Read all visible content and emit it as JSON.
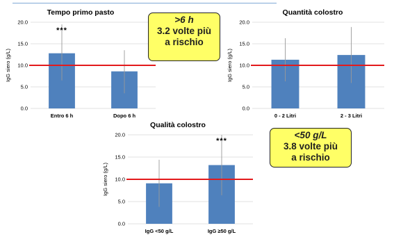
{
  "chart_data": [
    {
      "type": "bar",
      "title": "Tempo primo pasto",
      "ylabel": "IgG siero (g/L)",
      "categories": [
        "Entro 6 h",
        "Dopo 6 h"
      ],
      "values": [
        12.8,
        8.6
      ],
      "errors_upper": [
        19.5,
        13.5
      ],
      "errors_lower": [
        6.5,
        3.5
      ],
      "annotations": [
        "***",
        ""
      ],
      "reference_line": 10.0,
      "ylim": [
        0,
        20
      ],
      "yticks": [
        "0.0",
        "5.0",
        "10.0",
        "15.0",
        "20.0"
      ],
      "grid": true
    },
    {
      "type": "bar",
      "title": "Quantità colostro",
      "ylabel": "IgG siero (g/L)",
      "categories": [
        "0 - 2 Litri",
        "2 - 3 Litri"
      ],
      "values": [
        11.3,
        12.4
      ],
      "errors_upper": [
        16.3,
        18.9
      ],
      "errors_lower": [
        6.3,
        5.9
      ],
      "annotations": [
        "",
        ""
      ],
      "reference_line": 10.0,
      "ylim": [
        0,
        20
      ],
      "yticks": [
        "0.0",
        "5.0",
        "10.0",
        "15.0",
        "20.0"
      ],
      "grid": true
    },
    {
      "type": "bar",
      "title": "Qualità colostro",
      "ylabel": "IgG siero (g/L)",
      "categories": [
        "IgG <50 g/L",
        "IgG ≥50 g/L"
      ],
      "values": [
        9.1,
        13.2
      ],
      "errors_upper": [
        14.4,
        20.0
      ],
      "errors_lower": [
        3.8,
        6.4
      ],
      "annotations": [
        "",
        "***"
      ],
      "reference_line": 10.0,
      "ylim": [
        0,
        20
      ],
      "yticks": [
        "0.0",
        "5.0",
        "10.0",
        "15.0",
        "20.0"
      ],
      "grid": true
    }
  ],
  "callouts": [
    {
      "highlight": ">6 h",
      "line1": "3.2 volte più",
      "line2": "a rischio"
    },
    {
      "highlight": "<50 g/L",
      "line1": "3.8 volte più",
      "line2": "a rischio"
    }
  ],
  "colors": {
    "bar": "#4f81bd",
    "reference_line": "#e31a1c",
    "callout_bg": "#ffff66",
    "error_bar": "#999999",
    "grid": "#d9d9d9"
  }
}
